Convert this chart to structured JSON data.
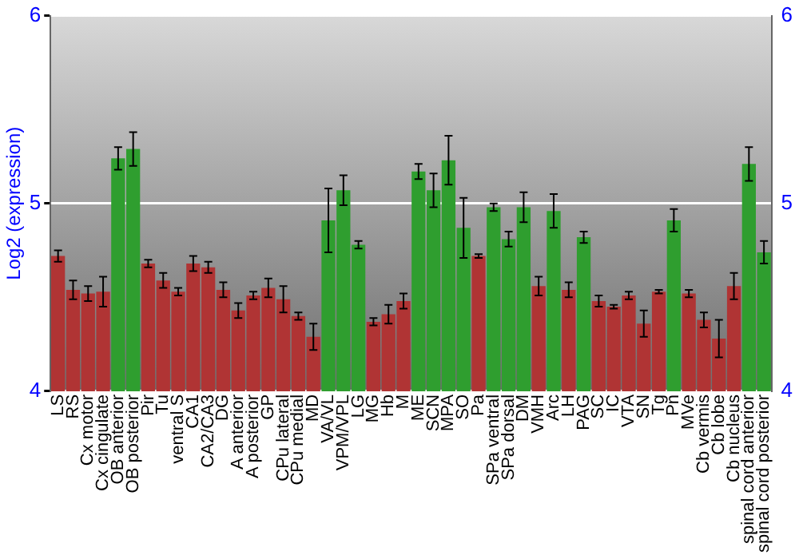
{
  "chart_data": {
    "type": "bar",
    "ylabel": "Log2 (expression)",
    "categories": [
      "LS",
      "RS",
      "Cx motor",
      "Cx cingulate",
      "OB anterior",
      "OB posterior",
      "Pir",
      "Tu",
      "ventral S",
      "CA1",
      "CA2/CA3",
      "DG",
      "A anterior",
      "A posterior",
      "GP",
      "CPu lateral",
      "CPu medial",
      "MD",
      "VA/VL",
      "VPM/VPL",
      "LG",
      "MG",
      "Hb",
      "M",
      "ME",
      "SCN",
      "MPA",
      "SO",
      "Pa",
      "SPa ventral",
      "SPa dorsal",
      "DM",
      "VMH",
      "Arc",
      "LH",
      "PAG",
      "SC",
      "IC",
      "VTA",
      "SN",
      "Tg",
      "Pn",
      "MVe",
      "Cb vermis",
      "Cb lobe",
      "Cb nucleus",
      "spinal cord anterior",
      "spinal cord posterior"
    ],
    "values": [
      4.72,
      4.54,
      4.52,
      4.53,
      5.24,
      5.29,
      4.68,
      4.59,
      4.53,
      4.68,
      4.66,
      4.54,
      4.43,
      4.51,
      4.55,
      4.49,
      4.4,
      4.29,
      4.91,
      5.07,
      4.78,
      4.37,
      4.41,
      4.48,
      5.17,
      5.07,
      5.23,
      4.87,
      4.72,
      4.98,
      4.81,
      4.98,
      4.56,
      4.96,
      4.54,
      4.82,
      4.48,
      4.45,
      4.51,
      4.36,
      4.53,
      4.91,
      4.52,
      4.38,
      4.28,
      4.56,
      5.21,
      4.74
    ],
    "errors": [
      0.03,
      0.05,
      0.04,
      0.08,
      0.06,
      0.09,
      0.02,
      0.04,
      0.02,
      0.04,
      0.03,
      0.04,
      0.04,
      0.02,
      0.05,
      0.07,
      0.02,
      0.07,
      0.17,
      0.08,
      0.02,
      0.02,
      0.05,
      0.04,
      0.04,
      0.09,
      0.13,
      0.16,
      0.01,
      0.02,
      0.04,
      0.08,
      0.05,
      0.09,
      0.04,
      0.03,
      0.03,
      0.01,
      0.02,
      0.07,
      0.01,
      0.06,
      0.02,
      0.04,
      0.1,
      0.07,
      0.09,
      0.06
    ],
    "colors": [
      "#b03434",
      "#b03434",
      "#b03434",
      "#b03434",
      "#2f9e2f",
      "#2f9e2f",
      "#b03434",
      "#b03434",
      "#b03434",
      "#b03434",
      "#b03434",
      "#b03434",
      "#b03434",
      "#b03434",
      "#b03434",
      "#b03434",
      "#b03434",
      "#b03434",
      "#2f9e2f",
      "#2f9e2f",
      "#2f9e2f",
      "#b03434",
      "#b03434",
      "#b03434",
      "#2f9e2f",
      "#2f9e2f",
      "#2f9e2f",
      "#2f9e2f",
      "#b03434",
      "#2f9e2f",
      "#2f9e2f",
      "#2f9e2f",
      "#b03434",
      "#2f9e2f",
      "#b03434",
      "#2f9e2f",
      "#b03434",
      "#b03434",
      "#b03434",
      "#b03434",
      "#b03434",
      "#2f9e2f",
      "#b03434",
      "#b03434",
      "#b03434",
      "#b03434",
      "#2f9e2f",
      "#2f9e2f"
    ],
    "ylim": [
      4,
      6
    ],
    "yticks": [
      4,
      5,
      6
    ],
    "y2lim": [
      4,
      6
    ],
    "y2ticks": [
      4,
      5,
      6
    ],
    "grid": "y"
  }
}
